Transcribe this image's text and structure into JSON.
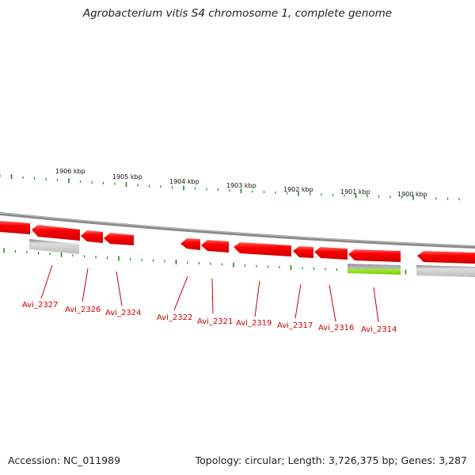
{
  "title": "Agrobacterium vitis S4 chromosome 1, complete genome",
  "accession": "Accession: NC_011989",
  "summary": "Topology: circular; Length: 3,726,375 bp; Genes: 3,287",
  "colors": {
    "gene": "#ff0000",
    "gene_dark": "#b00000",
    "pseudo": "#bbbbbb",
    "rna": "#99ee22",
    "backbone": "#888888",
    "tick": "#228822",
    "label": "#cc0000"
  },
  "scale_ticks": [
    {
      "label": "1906 kbp"
    },
    {
      "label": "1905 kbp"
    },
    {
      "label": "1904 kbp"
    },
    {
      "label": "1903 kbp"
    },
    {
      "label": "1902 kbp"
    },
    {
      "label": "1901 kbp"
    },
    {
      "label": "1900 kbp"
    }
  ],
  "gene_labels": [
    {
      "label": "Avi_2327"
    },
    {
      "label": "Avi_2326"
    },
    {
      "label": "Avi_2324"
    },
    {
      "label": "Avi_2322"
    },
    {
      "label": "Avi_2321"
    },
    {
      "label": "Avi_2319"
    },
    {
      "label": "Avi_2317"
    },
    {
      "label": "Avi_2316"
    },
    {
      "label": "Avi_2314"
    }
  ]
}
